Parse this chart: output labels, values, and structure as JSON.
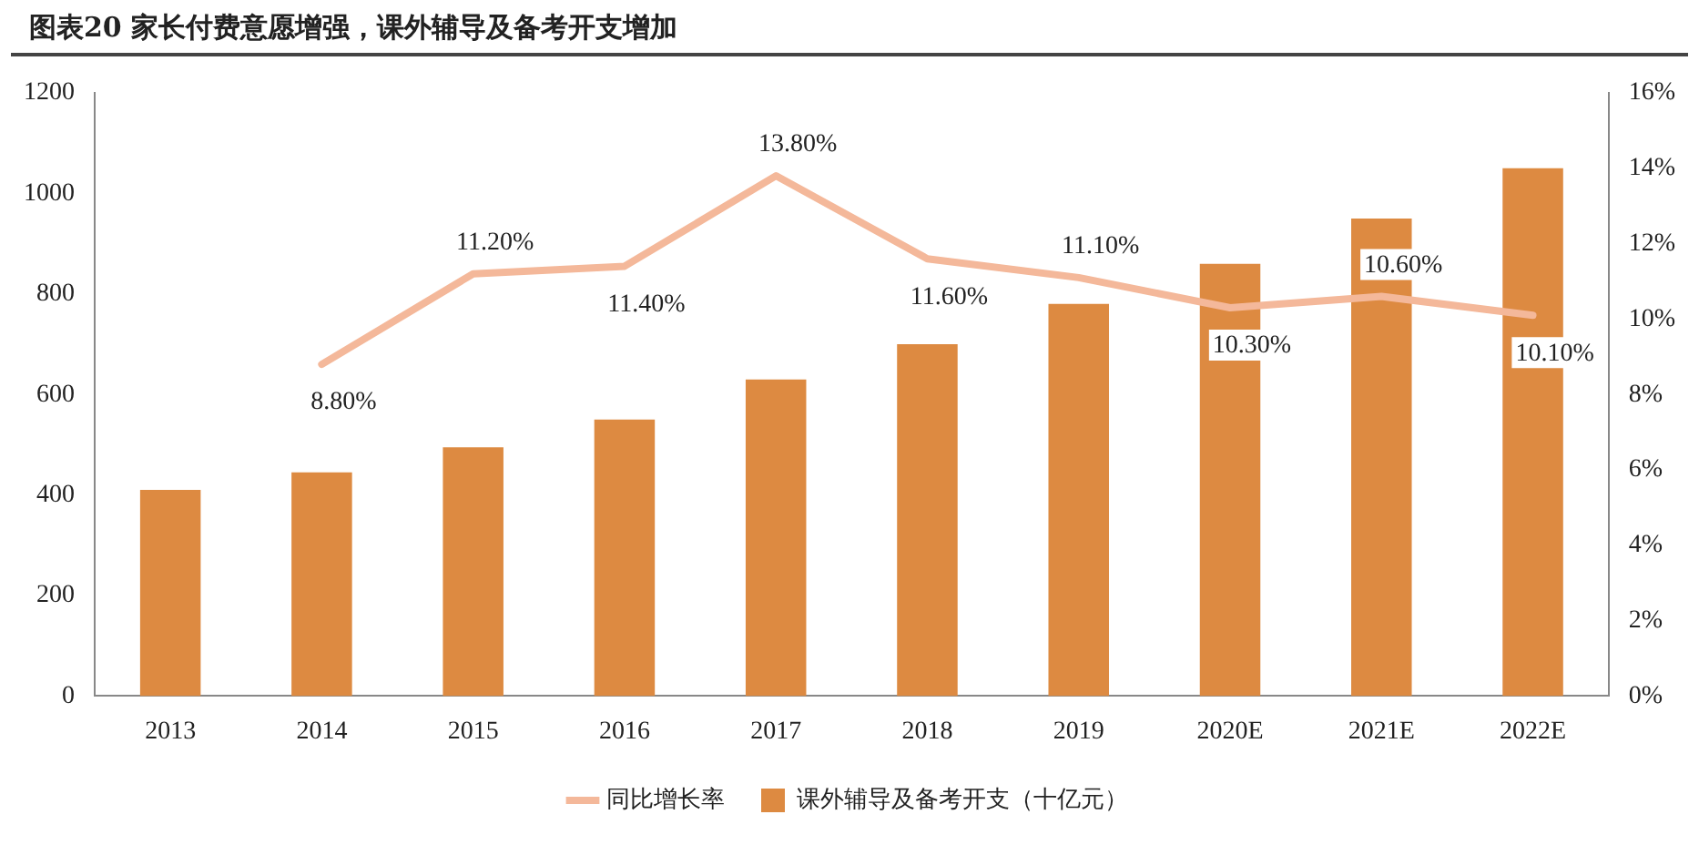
{
  "chart_data": {
    "type": "bar",
    "title": "图表20 家长付费意愿增强，课外辅导及备考开支增加",
    "categories": [
      "2013",
      "2014",
      "2015",
      "2016",
      "2017",
      "2018",
      "2019",
      "2020E",
      "2021E",
      "2022E"
    ],
    "series": [
      {
        "name": "课外辅导及备考开支（十亿元）",
        "color": "#dd8a41",
        "values": [
          410,
          445,
          495,
          550,
          630,
          700,
          780,
          860,
          950,
          1050
        ]
      },
      {
        "name": "同比增长率",
        "type": "line",
        "axis": "y2",
        "color": "#f4b89a",
        "values": [
          null,
          8.8,
          11.2,
          11.4,
          13.8,
          11.6,
          11.1,
          10.3,
          10.6,
          10.1
        ],
        "value_labels": [
          null,
          "8.80%",
          "11.20%",
          "11.40%",
          "13.80%",
          "11.60%",
          "11.10%",
          "10.30%",
          "10.60%",
          "10.10%"
        ]
      }
    ],
    "ylim": [
      0,
      1200
    ],
    "yticks": [
      0,
      200,
      400,
      600,
      800,
      1000,
      1200
    ],
    "y2lim": [
      0,
      16
    ],
    "y2ticks": [
      {
        "value": 0,
        "label": "0%"
      },
      {
        "value": 2,
        "label": "2%"
      },
      {
        "value": 4,
        "label": "4%"
      },
      {
        "value": 6,
        "label": "6%"
      },
      {
        "value": 8,
        "label": "8%"
      },
      {
        "value": 10,
        "label": "10%"
      },
      {
        "value": 12,
        "label": "12%"
      },
      {
        "value": 14,
        "label": "14%"
      },
      {
        "value": 16,
        "label": "16%"
      }
    ],
    "grid": false,
    "legend": "bottom",
    "marker": "none",
    "line_style": "solid"
  }
}
